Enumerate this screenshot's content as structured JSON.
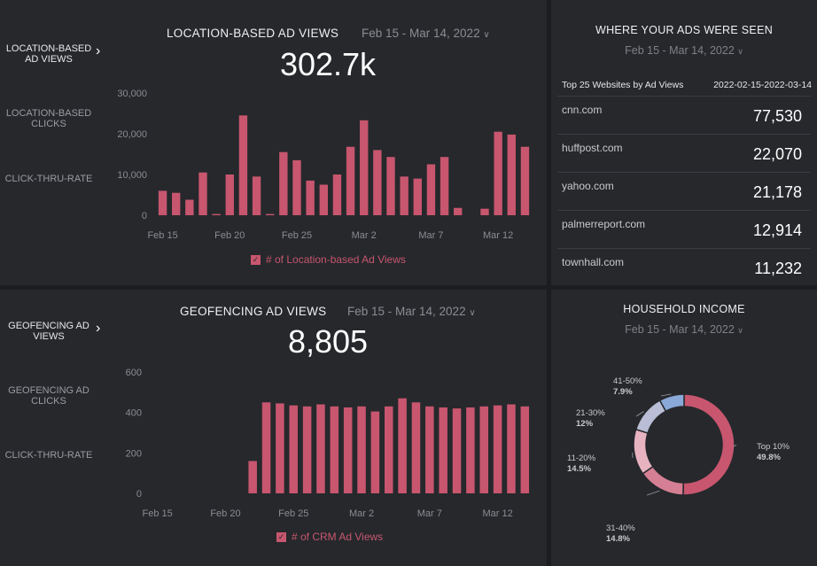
{
  "colors": {
    "bar": "#c7566e",
    "donut": [
      "#c7566e",
      "#d57f94",
      "#e7b3c0",
      "#b9bed6",
      "#8aa8d8"
    ]
  },
  "top_panel": {
    "nav": [
      {
        "label": "LOCATION-BASED AD VIEWS",
        "active": true
      },
      {
        "label": "LOCATION-BASED CLICKS",
        "active": false
      },
      {
        "label": "CLICK-THRU-RATE",
        "active": false
      }
    ],
    "title": "LOCATION-BASED AD VIEWS",
    "date_range": "Feb 15 - Mar 14, 2022",
    "big_number": "302.7k",
    "legend": "# of Location-based Ad Views"
  },
  "bottom_panel": {
    "nav": [
      {
        "label": "GEOFENCING AD VIEWS",
        "active": true
      },
      {
        "label": "GEOFENCING AD CLICKS",
        "active": false
      },
      {
        "label": "CLICK-THRU-RATE",
        "active": false
      }
    ],
    "title": "GEOFENCING AD VIEWS",
    "date_range": "Feb 15 - Mar 14, 2022",
    "big_number": "8,805",
    "legend": "# of CRM Ad Views"
  },
  "sites_panel": {
    "title": "WHERE YOUR ADS WERE SEEN",
    "date_range": "Feb 15 - Mar 14, 2022",
    "table_label": "Top 25 Websites by Ad Views",
    "table_range": "2022-02-15-2022-03-14",
    "rows": [
      {
        "site": "cnn.com",
        "value": "77,530"
      },
      {
        "site": "huffpost.com",
        "value": "22,070"
      },
      {
        "site": "yahoo.com",
        "value": "21,178"
      },
      {
        "site": "palmerreport.com",
        "value": "12,914"
      },
      {
        "site": "townhall.com",
        "value": "11,232"
      }
    ]
  },
  "income_panel": {
    "title": "HOUSEHOLD INCOME",
    "date_range": "Feb 15 - Mar 14, 2022"
  },
  "chart_data": [
    {
      "type": "bar",
      "title": "LOCATION-BASED AD VIEWS",
      "ylim": [
        0,
        30000
      ],
      "yticks": [
        "0",
        "10,000",
        "20,000",
        "30,000"
      ],
      "ytick_values": [
        0,
        10000,
        20000,
        30000
      ],
      "xtick_labels": [
        "Feb 15",
        "Feb 20",
        "Feb 25",
        "Mar 2",
        "Mar 7",
        "Mar 12"
      ],
      "xtick_index": [
        0,
        5,
        10,
        15,
        20,
        25
      ],
      "series": [
        {
          "name": "# of Location-based Ad Views",
          "values": [
            6000,
            5500,
            3800,
            10500,
            300,
            10000,
            24500,
            9500,
            300,
            15500,
            13500,
            8500,
            7500,
            10000,
            16800,
            23300,
            16000,
            14300,
            9500,
            9000,
            12500,
            14300,
            1800,
            0,
            1600,
            20500,
            19800,
            16800
          ]
        }
      ]
    },
    {
      "type": "bar",
      "title": "GEOFENCING AD VIEWS",
      "ylim": [
        0,
        600
      ],
      "yticks": [
        "0",
        "200",
        "400",
        "600"
      ],
      "ytick_values": [
        0,
        200,
        400,
        600
      ],
      "xtick_labels": [
        "Feb 15",
        "Feb 20",
        "Feb 25",
        "Mar 2",
        "Mar 7",
        "Mar 12"
      ],
      "xtick_index": [
        0,
        5,
        10,
        15,
        20,
        25
      ],
      "series": [
        {
          "name": "# of CRM Ad Views",
          "values": [
            0,
            0,
            0,
            0,
            0,
            0,
            0,
            160,
            450,
            445,
            435,
            430,
            440,
            430,
            425,
            430,
            405,
            430,
            470,
            450,
            430,
            425,
            420,
            425,
            430,
            435,
            440,
            430
          ]
        }
      ]
    },
    {
      "type": "pie",
      "title": "HOUSEHOLD INCOME",
      "categories": [
        "Top 10%",
        "31-40%",
        "11-20%",
        "21-30%",
        "41-50%"
      ],
      "values": [
        49.8,
        14.8,
        14.5,
        12,
        7.9
      ],
      "value_labels": [
        "49.8%",
        "14.8%",
        "14.5%",
        "12%",
        "7.9%"
      ]
    }
  ]
}
